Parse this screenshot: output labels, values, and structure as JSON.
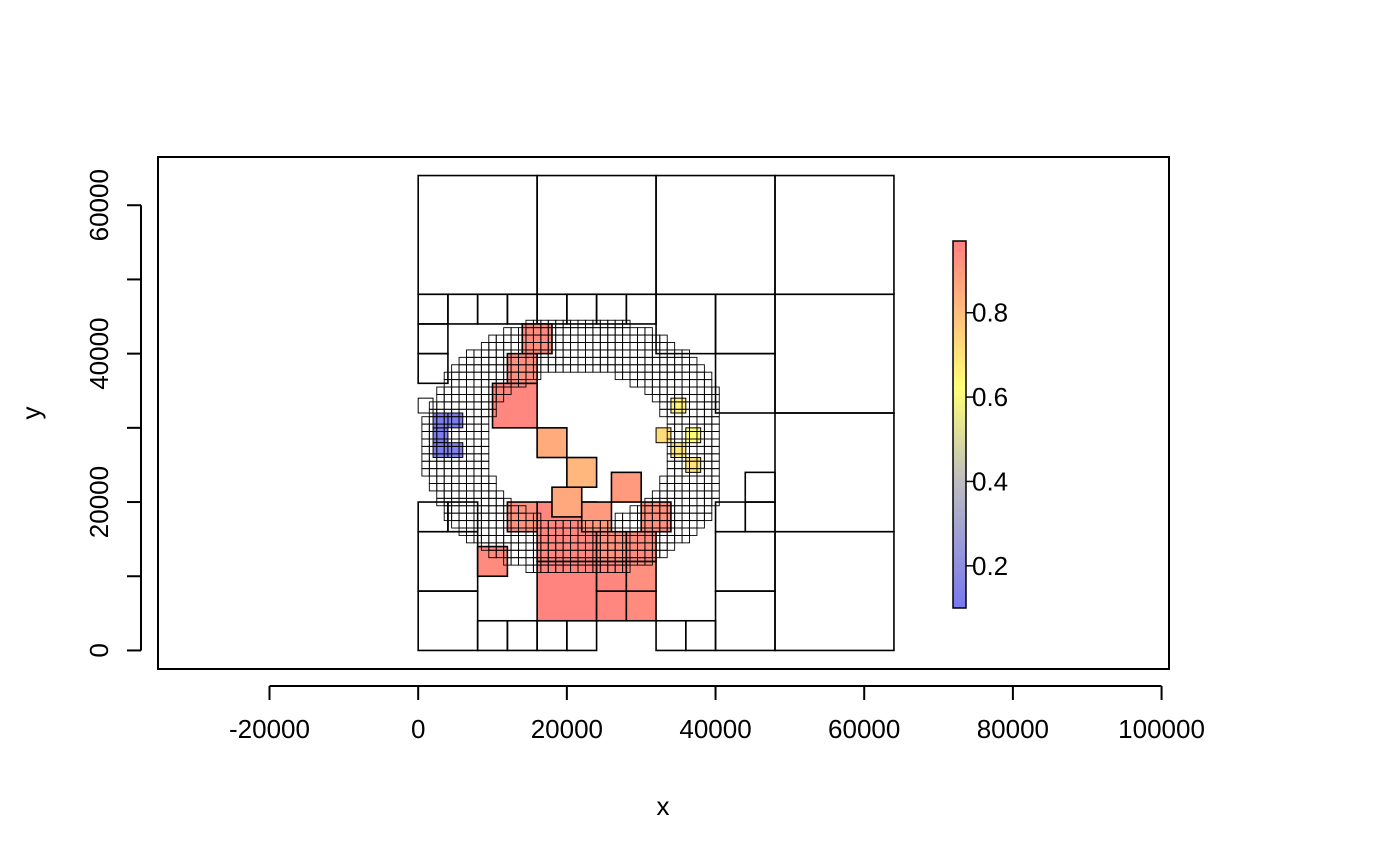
{
  "chart_data": {
    "type": "heatmap",
    "subtype": "quadtree-raster",
    "xlabel": "x",
    "ylabel": "y",
    "xlim": [
      -35000,
      101000
    ],
    "ylim": [
      -2500,
      66500
    ],
    "x_ticks": [
      -20000,
      0,
      20000,
      40000,
      60000,
      80000,
      100000
    ],
    "x_tick_labels": [
      "-20000",
      "0",
      "20000",
      "40000",
      "60000",
      "80000",
      "100000"
    ],
    "y_ticks": [
      0,
      10000,
      20000,
      30000,
      40000,
      50000,
      60000
    ],
    "y_tick_labels": [
      "0",
      "",
      "20000",
      "",
      "40000",
      "",
      "60000"
    ],
    "grid": false,
    "legend": {
      "placement": "right",
      "range": [
        0.1,
        0.97
      ],
      "ticks": [
        0.2,
        0.4,
        0.6,
        0.8
      ],
      "tick_labels": [
        "0.2",
        "0.4",
        "0.6",
        "0.8"
      ],
      "colors": {
        "low": "#7878f0",
        "mid": "#ffff78",
        "high": "#ff8080",
        "mid_gray": "#bebebe"
      }
    },
    "cells": [
      [
        0,
        48000,
        16000,
        0
      ],
      [
        16000,
        48000,
        16000,
        0
      ],
      [
        32000,
        48000,
        16000,
        0
      ],
      [
        48000,
        48000,
        16000,
        0
      ],
      [
        48000,
        32000,
        16000,
        0
      ],
      [
        48000,
        16000,
        16000,
        0
      ],
      [
        48000,
        0,
        16000,
        0
      ],
      [
        0,
        0,
        8000,
        0
      ],
      [
        0,
        8000,
        8000,
        0
      ],
      [
        0,
        16000,
        4000,
        0
      ],
      [
        4000,
        16000,
        4000,
        0
      ],
      [
        8000,
        0,
        4000,
        0
      ],
      [
        12000,
        0,
        4000,
        0
      ],
      [
        16000,
        0,
        4000,
        0
      ],
      [
        20000,
        0,
        4000,
        0
      ],
      [
        32000,
        0,
        4000,
        0
      ],
      [
        36000,
        0,
        4000,
        0
      ],
      [
        40000,
        0,
        8000,
        0
      ],
      [
        40000,
        8000,
        8000,
        0
      ],
      [
        40000,
        16000,
        4000,
        0
      ],
      [
        44000,
        16000,
        4000,
        0
      ],
      [
        44000,
        20000,
        4000,
        0
      ],
      [
        40000,
        32000,
        8000,
        0
      ],
      [
        40000,
        40000,
        8000,
        0
      ],
      [
        32000,
        40000,
        8000,
        0
      ],
      [
        16000,
        44000,
        4000,
        0
      ],
      [
        20000,
        44000,
        4000,
        0
      ],
      [
        24000,
        44000,
        4000,
        0
      ],
      [
        28000,
        44000,
        4000,
        0
      ],
      [
        12000,
        44000,
        4000,
        0
      ],
      [
        8000,
        44000,
        4000,
        0
      ],
      [
        0,
        44000,
        4000,
        0
      ],
      [
        4000,
        44000,
        4000,
        0
      ],
      [
        0,
        40000,
        4000,
        0
      ],
      [
        0,
        36000,
        4000,
        0
      ],
      [
        0,
        32000,
        2000,
        0
      ],
      [
        10000,
        30000,
        6000,
        0.95
      ],
      [
        12000,
        36000,
        4000,
        0.93
      ],
      [
        14000,
        40000,
        4000,
        0.94
      ],
      [
        16000,
        4000,
        8000,
        0.96
      ],
      [
        16000,
        12000,
        8000,
        0.95
      ],
      [
        24000,
        4000,
        4000,
        0.95
      ],
      [
        28000,
        4000,
        4000,
        0.94
      ],
      [
        24000,
        8000,
        4000,
        0.95
      ],
      [
        28000,
        8000,
        4000,
        0.93
      ],
      [
        24000,
        12000,
        4000,
        0.92
      ],
      [
        28000,
        12000,
        4000,
        0.94
      ],
      [
        22000,
        16000,
        4000,
        0.9
      ],
      [
        30000,
        16000,
        4000,
        0.93
      ],
      [
        26000,
        20000,
        4000,
        0.9
      ],
      [
        18000,
        18000,
        4000,
        0.86
      ],
      [
        12000,
        16000,
        4000,
        0.92
      ],
      [
        8000,
        10000,
        4000,
        0.94
      ],
      [
        20000,
        22000,
        4000,
        0.82
      ],
      [
        16000,
        26000,
        4000,
        0.85
      ],
      [
        2000,
        28000,
        2000,
        0.12
      ],
      [
        2000,
        26000,
        2000,
        0.12
      ],
      [
        4000,
        26000,
        2000,
        0.14
      ],
      [
        4000,
        30000,
        2000,
        0.12
      ],
      [
        2000,
        30000,
        2000,
        0.12
      ],
      [
        34000,
        26000,
        2000,
        0.68
      ],
      [
        36000,
        28000,
        2000,
        0.62
      ],
      [
        36000,
        24000,
        2000,
        0.7
      ],
      [
        32000,
        28000,
        2000,
        0.72
      ],
      [
        34000,
        32000,
        2000,
        0.66
      ]
    ]
  }
}
